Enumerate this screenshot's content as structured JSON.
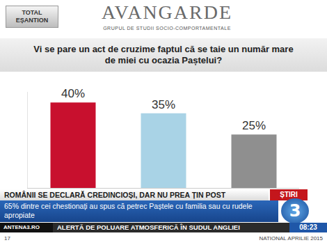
{
  "header": {
    "box": "TOTAL EȘANTION",
    "logo": "AVANGARDE",
    "logo_subtitle": "GRUPUL DE STUDII SOCIO-COMPORTAMENTALE"
  },
  "chart_data": {
    "type": "bar",
    "title": "Vi se pare un act de cruzime faptul că se taie un număr mare de miei cu ocazia Paștelui?",
    "categories": [
      null,
      null,
      null
    ],
    "values": [
      40,
      35,
      25
    ],
    "value_labels": [
      "40%",
      "35%",
      "25%"
    ],
    "colors": [
      "#c8102e",
      "#a9d3e6",
      "#8f8f8f"
    ],
    "data_labels": true,
    "tick_labels": false,
    "grid": false,
    "ylim": [
      0,
      45
    ],
    "yticks": []
  },
  "ticker": {
    "headline": "ROMÂNII SE DECLARĂ CREDINCIOȘI, DAR NU PREA ȚIN POST",
    "channel_label": "ȘTIRI",
    "subheadline": "65% dintre cei chestionați au spus că petrec Paștele cu familia sau cu rudele apropiate",
    "channel_logo": "3",
    "website": "ANTENA3.RO",
    "crawl": "ALERTĂ DE POLUARE ATMOSFERICĂ ÎN SUDUL ANGLIEI",
    "time": "08:23"
  },
  "footer": {
    "page": "17",
    "source": "NATIONAL APRILIE 2015"
  }
}
